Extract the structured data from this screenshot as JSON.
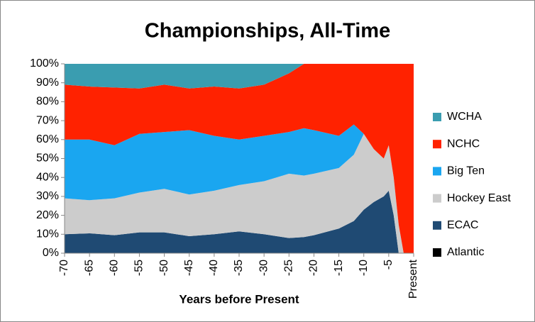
{
  "chart_data": {
    "type": "stacked_area_percent",
    "title": "Championships, All-Time",
    "x_label": "Years before Present",
    "x": [
      -70,
      -65,
      -60,
      -55,
      -50,
      -45,
      -40,
      -35,
      -30,
      -25,
      -22,
      -20,
      -15,
      -12,
      -10,
      -8,
      -6,
      -5,
      -4,
      -3,
      -2,
      0
    ],
    "series": [
      {
        "name": "Atlantic",
        "color": "#000000",
        "values": [
          0,
          0,
          0,
          0,
          0,
          0,
          0,
          0,
          0,
          0,
          0,
          0,
          0,
          0,
          0,
          0,
          0,
          0,
          0,
          0,
          0,
          0
        ]
      },
      {
        "name": "ECAC",
        "color": "#1f4a73",
        "values": [
          10,
          10.5,
          9.5,
          11,
          11,
          9,
          10,
          11.5,
          10,
          8,
          8.5,
          9.5,
          13,
          17,
          23,
          27,
          30,
          33,
          20,
          0,
          0,
          0
        ]
      },
      {
        "name": "Hockey East",
        "color": "#cccccc",
        "values": [
          19,
          17.5,
          19.5,
          21,
          23,
          22,
          23,
          24.5,
          28,
          34,
          32.5,
          32.5,
          32,
          35,
          40,
          28,
          20,
          24,
          20,
          15,
          0,
          0
        ]
      },
      {
        "name": "Big Ten",
        "color": "#1aa6f0",
        "values": [
          31,
          32,
          28,
          31,
          30,
          34,
          29,
          24,
          24,
          22,
          25,
          23,
          17,
          16,
          0,
          0,
          0,
          0,
          0,
          0,
          0,
          0
        ]
      },
      {
        "name": "NCHC",
        "color": "#ff2200",
        "values": [
          29,
          28,
          30.5,
          24,
          25,
          22,
          26,
          27,
          27,
          31,
          34,
          35,
          38,
          32,
          37,
          45,
          50,
          43,
          60,
          85,
          100,
          100
        ]
      },
      {
        "name": "WCHA",
        "color": "#3a9db0",
        "values": [
          11,
          12,
          12.5,
          13,
          11,
          13,
          12,
          13,
          11,
          5,
          0,
          0,
          0,
          0,
          0,
          0,
          0,
          0,
          0,
          0,
          0,
          0
        ]
      }
    ],
    "xlim": [
      -70,
      0
    ],
    "xticks": [
      -70,
      -65,
      -60,
      -55,
      -50,
      -45,
      -40,
      -35,
      -30,
      -25,
      -20,
      -15,
      -10,
      -5,
      {
        "value": 0,
        "label": "Present"
      }
    ],
    "ylim": [
      0,
      100
    ],
    "yticks": [
      {
        "value": 0,
        "label": "0%"
      },
      {
        "value": 10,
        "label": "10%"
      },
      {
        "value": 20,
        "label": "20%"
      },
      {
        "value": 30,
        "label": "30%"
      },
      {
        "value": 40,
        "label": "40%"
      },
      {
        "value": 50,
        "label": "50%"
      },
      {
        "value": 60,
        "label": "60%"
      },
      {
        "value": 70,
        "label": "70%"
      },
      {
        "value": 80,
        "label": "80%"
      },
      {
        "value": 90,
        "label": "90%"
      },
      {
        "value": 100,
        "label": "100%"
      }
    ],
    "legend": "right"
  }
}
